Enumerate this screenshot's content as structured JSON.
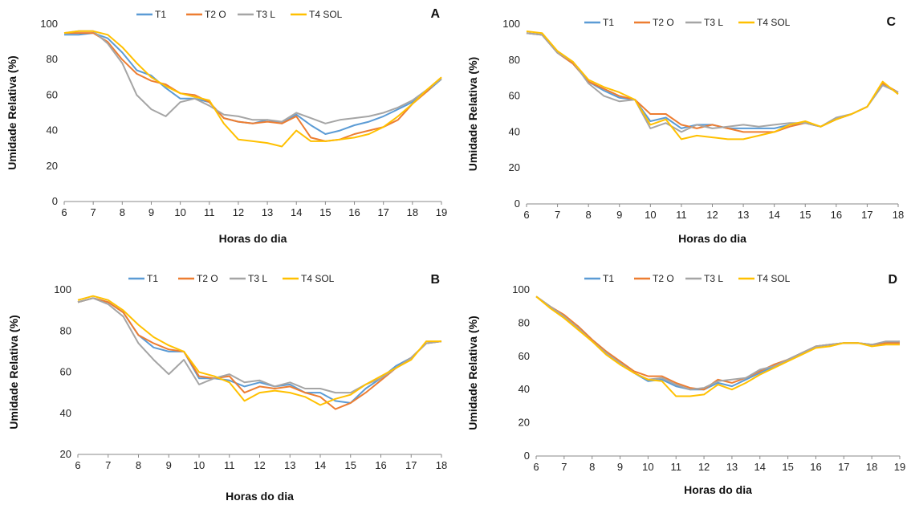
{
  "legend_colors": {
    "T1": "#5B9BD5",
    "T2 O": "#ED7D31",
    "T3 L": "#A5A5A5",
    "T4 SOL": "#FFC000"
  },
  "chart_data": [
    {
      "panel": "A",
      "type": "line",
      "xlabel": "Horas do dia",
      "ylabel": "Umidade Relativa (%)",
      "xlim": [
        6,
        19
      ],
      "ylim": [
        0,
        100
      ],
      "xticks": [
        6,
        7,
        8,
        9,
        10,
        11,
        12,
        13,
        14,
        15,
        16,
        17,
        18,
        19
      ],
      "yticks": [
        0,
        20,
        40,
        60,
        80,
        100
      ],
      "legend_position": "top",
      "x": [
        6,
        6.5,
        7,
        7.5,
        8,
        8.5,
        9,
        9.5,
        10,
        10.5,
        11,
        11.5,
        12,
        12.5,
        13,
        13.5,
        14,
        14.5,
        15,
        15.5,
        16,
        16.5,
        17,
        17.5,
        18,
        18.5,
        19
      ],
      "series": [
        {
          "name": "T1",
          "color": "#5B9BD5",
          "values": [
            94,
            94,
            95,
            92,
            84,
            74,
            71,
            64,
            58,
            58,
            56,
            47,
            45,
            44,
            46,
            44,
            49,
            43,
            38,
            40,
            43,
            45,
            48,
            52,
            56,
            62,
            69
          ]
        },
        {
          "name": "T2 O",
          "color": "#ED7D31",
          "values": [
            95,
            95,
            95,
            90,
            80,
            72,
            68,
            66,
            61,
            60,
            56,
            47,
            45,
            44,
            45,
            44,
            48,
            36,
            34,
            35,
            38,
            40,
            42,
            46,
            55,
            62,
            70
          ]
        },
        {
          "name": "T3 L",
          "color": "#A5A5A5",
          "values": [
            95,
            96,
            96,
            89,
            78,
            60,
            52,
            48,
            56,
            58,
            54,
            49,
            48,
            46,
            46,
            45,
            50,
            47,
            44,
            46,
            47,
            48,
            50,
            53,
            57,
            63,
            69
          ]
        },
        {
          "name": "T4 SOL",
          "color": "#FFC000",
          "values": [
            95,
            96,
            96,
            94,
            87,
            78,
            70,
            65,
            61,
            59,
            57,
            44,
            35,
            34,
            33,
            31,
            40,
            34,
            34,
            35,
            36,
            38,
            42,
            48,
            55,
            63,
            70
          ]
        }
      ]
    },
    {
      "panel": "B",
      "type": "line",
      "xlabel": "Horas do dia",
      "ylabel": "Umidade Relativa (%)",
      "xlim": [
        6,
        18
      ],
      "ylim": [
        20,
        100
      ],
      "xticks": [
        6,
        7,
        8,
        9,
        10,
        11,
        12,
        13,
        14,
        15,
        16,
        17,
        18
      ],
      "yticks": [
        20,
        40,
        60,
        80,
        100
      ],
      "legend_position": "top",
      "x": [
        6,
        6.5,
        7,
        7.5,
        8,
        8.5,
        9,
        9.5,
        10,
        10.5,
        11,
        11.5,
        12,
        12.5,
        13,
        13.5,
        14,
        14.5,
        15,
        15.5,
        16,
        16.5,
        17,
        17.5,
        18
      ],
      "series": [
        {
          "name": "T1",
          "color": "#5B9BD5",
          "values": [
            94,
            96,
            94,
            89,
            78,
            72,
            70,
            70,
            57,
            57,
            56,
            53,
            55,
            53,
            54,
            50,
            50,
            46,
            45,
            52,
            57,
            63,
            67,
            74,
            75
          ]
        },
        {
          "name": "T2 O",
          "color": "#ED7D31",
          "values": [
            94,
            96,
            94,
            89,
            78,
            74,
            71,
            70,
            58,
            57,
            58,
            50,
            53,
            52,
            53,
            50,
            48,
            42,
            45,
            50,
            56,
            62,
            67,
            74,
            75
          ]
        },
        {
          "name": "T3 L",
          "color": "#A5A5A5",
          "values": [
            94,
            96,
            93,
            87,
            74,
            66,
            59,
            66,
            54,
            57,
            59,
            55,
            56,
            53,
            55,
            52,
            52,
            50,
            50,
            54,
            57,
            62,
            67,
            74,
            75
          ]
        },
        {
          "name": "T4 SOL",
          "color": "#FFC000",
          "values": [
            95,
            97,
            95,
            90,
            83,
            77,
            73,
            70,
            60,
            58,
            55,
            46,
            50,
            51,
            50,
            48,
            44,
            47,
            49,
            54,
            58,
            62,
            66,
            75,
            75
          ]
        }
      ]
    },
    {
      "panel": "C",
      "type": "line",
      "xlabel": "Horas do dia",
      "ylabel": "Umidade Relativa (%)",
      "xlim": [
        6,
        18
      ],
      "ylim": [
        0,
        100
      ],
      "xticks": [
        6,
        7,
        8,
        9,
        10,
        11,
        12,
        13,
        14,
        15,
        16,
        17,
        18
      ],
      "yticks": [
        0,
        20,
        40,
        60,
        80,
        100
      ],
      "legend_position": "top",
      "x": [
        6,
        6.5,
        7,
        7.5,
        8,
        8.5,
        9,
        9.5,
        10,
        10.5,
        11,
        11.5,
        12,
        12.5,
        13,
        13.5,
        14,
        14.5,
        15,
        15.5,
        16,
        16.5,
        17,
        17.5,
        18
      ],
      "series": [
        {
          "name": "T1",
          "color": "#5B9BD5",
          "values": [
            95,
            94,
            84,
            78,
            68,
            63,
            59,
            58,
            46,
            48,
            42,
            44,
            44,
            42,
            42,
            42,
            42,
            44,
            45,
            43,
            47,
            50,
            54,
            67,
            62
          ]
        },
        {
          "name": "T2 O",
          "color": "#ED7D31",
          "values": [
            95,
            94,
            84,
            78,
            68,
            64,
            60,
            58,
            50,
            50,
            44,
            42,
            44,
            42,
            40,
            40,
            40,
            43,
            45,
            43,
            47,
            50,
            54,
            67,
            62
          ]
        },
        {
          "name": "T3 L",
          "color": "#A5A5A5",
          "values": [
            95,
            94,
            84,
            79,
            67,
            60,
            57,
            58,
            42,
            45,
            40,
            44,
            42,
            43,
            44,
            43,
            44,
            45,
            45,
            43,
            48,
            50,
            54,
            66,
            62
          ]
        },
        {
          "name": "T4 SOL",
          "color": "#FFC000",
          "values": [
            96,
            95,
            85,
            79,
            69,
            65,
            62,
            58,
            44,
            47,
            36,
            38,
            37,
            36,
            36,
            38,
            40,
            44,
            46,
            43,
            47,
            50,
            54,
            68,
            61
          ]
        }
      ]
    },
    {
      "panel": "D",
      "type": "line",
      "xlabel": "Horas do dia",
      "ylabel": "Umidade Relativa (%)",
      "xlim": [
        6,
        19
      ],
      "ylim": [
        0,
        100
      ],
      "xticks": [
        6,
        7,
        8,
        9,
        10,
        11,
        12,
        13,
        14,
        15,
        16,
        17,
        18,
        19
      ],
      "yticks": [
        0,
        20,
        40,
        60,
        80,
        100
      ],
      "legend_position": "top",
      "x": [
        6,
        6.5,
        7,
        7.5,
        8,
        8.5,
        9,
        9.5,
        10,
        10.5,
        11,
        11.5,
        12,
        12.5,
        13,
        13.5,
        14,
        14.5,
        15,
        15.5,
        16,
        16.5,
        17,
        17.5,
        18,
        18.5,
        19
      ],
      "series": [
        {
          "name": "T1",
          "color": "#5B9BD5",
          "values": [
            96,
            90,
            84,
            78,
            70,
            63,
            56,
            50,
            45,
            46,
            42,
            40,
            40,
            44,
            42,
            46,
            50,
            54,
            58,
            62,
            66,
            67,
            68,
            68,
            67,
            68,
            69
          ]
        },
        {
          "name": "T2 O",
          "color": "#ED7D31",
          "values": [
            96,
            90,
            85,
            78,
            70,
            63,
            57,
            51,
            48,
            48,
            44,
            41,
            40,
            46,
            44,
            47,
            51,
            55,
            58,
            62,
            66,
            67,
            68,
            68,
            67,
            68,
            68
          ]
        },
        {
          "name": "T3 L",
          "color": "#A5A5A5",
          "values": [
            96,
            90,
            84,
            77,
            69,
            62,
            56,
            50,
            46,
            47,
            43,
            40,
            41,
            45,
            46,
            47,
            52,
            54,
            58,
            62,
            66,
            67,
            68,
            68,
            67,
            69,
            69
          ]
        },
        {
          "name": "T4 SOL",
          "color": "#FFC000",
          "values": [
            96,
            89,
            83,
            76,
            69,
            61,
            55,
            50,
            46,
            45,
            36,
            36,
            37,
            43,
            40,
            44,
            49,
            53,
            57,
            61,
            65,
            66,
            68,
            68,
            66,
            67,
            67
          ]
        }
      ]
    }
  ]
}
